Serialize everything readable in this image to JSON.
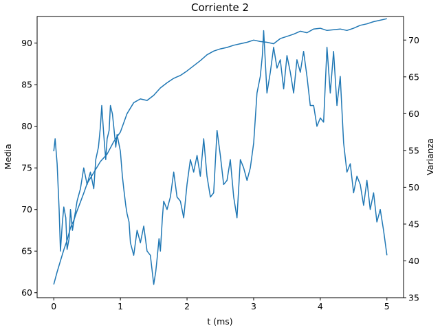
{
  "chart_data": {
    "type": "line",
    "title": "Corriente 2",
    "xlabel": "t (ms)",
    "ylabel_left": "Media",
    "ylabel_right": "Varianza",
    "xlim": [
      -0.25,
      5.25
    ],
    "ylim_left": [
      59.4,
      93.2
    ],
    "ylim_right": [
      35.0,
      73.2
    ],
    "xticks": [
      "0",
      "1",
      "2",
      "3",
      "4",
      "5"
    ],
    "yticks_left": [
      "60",
      "65",
      "70",
      "75",
      "80",
      "85",
      "90"
    ],
    "yticks_right": [
      "35",
      "40",
      "45",
      "50",
      "55",
      "60",
      "65",
      "70"
    ],
    "grid": false,
    "line_color": "#1f77b4",
    "series": [
      {
        "axis": "left",
        "x": [
          0.0,
          0.02,
          0.05,
          0.08,
          0.1,
          0.13,
          0.15,
          0.18,
          0.2,
          0.23,
          0.25,
          0.28,
          0.3,
          0.35,
          0.4,
          0.45,
          0.5,
          0.55,
          0.6,
          0.63,
          0.67,
          0.7,
          0.72,
          0.75,
          0.78,
          0.8,
          0.83,
          0.85,
          0.88,
          0.9,
          0.93,
          0.95,
          1.0,
          1.03,
          1.05,
          1.08,
          1.1,
          1.13,
          1.15,
          1.2,
          1.25,
          1.3,
          1.35,
          1.4,
          1.45,
          1.5,
          1.53,
          1.55,
          1.58,
          1.6,
          1.63,
          1.65,
          1.7,
          1.75,
          1.8,
          1.85,
          1.9,
          1.95,
          2.0,
          2.05,
          2.1,
          2.15,
          2.2,
          2.25,
          2.3,
          2.35,
          2.4,
          2.45,
          2.5,
          2.55,
          2.6,
          2.65,
          2.7,
          2.75,
          2.8,
          2.85,
          2.9,
          2.95,
          3.0,
          3.05,
          3.1,
          3.13,
          3.15,
          3.18,
          3.2,
          3.25,
          3.3,
          3.35,
          3.4,
          3.45,
          3.5,
          3.55,
          3.6,
          3.65,
          3.7,
          3.75,
          3.8,
          3.85,
          3.9,
          3.95,
          4.0,
          4.05,
          4.1,
          4.15,
          4.2,
          4.25,
          4.3,
          4.35,
          4.4,
          4.45,
          4.5,
          4.55,
          4.6,
          4.65,
          4.7,
          4.75,
          4.8,
          4.85,
          4.9,
          4.95,
          5.0
        ],
        "values": [
          77.0,
          78.5,
          75.5,
          70.0,
          65.0,
          68.5,
          70.3,
          69.0,
          65.2,
          66.5,
          70.0,
          67.5,
          68.5,
          71.0,
          72.5,
          75.0,
          73.0,
          74.5,
          72.5,
          76.0,
          77.5,
          80.0,
          82.5,
          79.0,
          76.0,
          78.5,
          79.5,
          82.5,
          81.5,
          80.0,
          77.5,
          79.0,
          77.0,
          74.0,
          72.5,
          70.5,
          69.5,
          68.5,
          66.0,
          64.5,
          67.5,
          66.0,
          68.0,
          65.0,
          64.5,
          61.0,
          62.5,
          64.0,
          66.5,
          65.0,
          69.0,
          71.0,
          70.0,
          71.5,
          74.5,
          71.5,
          71.0,
          69.0,
          73.0,
          76.0,
          74.5,
          76.5,
          74.0,
          78.5,
          74.0,
          71.5,
          72.0,
          79.5,
          76.5,
          73.0,
          73.5,
          76.0,
          71.5,
          69.0,
          76.0,
          75.0,
          73.5,
          75.0,
          78.0,
          84.0,
          86.0,
          88.5,
          91.5,
          87.0,
          84.0,
          86.5,
          89.5,
          87.0,
          88.0,
          84.5,
          88.5,
          86.5,
          84.0,
          88.0,
          86.5,
          89.0,
          86.0,
          82.5,
          82.5,
          80.0,
          81.0,
          80.5,
          89.5,
          84.0,
          89.0,
          82.5,
          86.0,
          78.0,
          74.5,
          75.5,
          72.0,
          74.0,
          73.0,
          70.5,
          73.5,
          70.0,
          72.0,
          68.5,
          70.0,
          67.5,
          64.5
        ]
      },
      {
        "axis": "right",
        "x": [
          0.0,
          0.05,
          0.1,
          0.15,
          0.2,
          0.25,
          0.3,
          0.35,
          0.4,
          0.45,
          0.5,
          0.6,
          0.7,
          0.8,
          0.9,
          1.0,
          1.1,
          1.2,
          1.3,
          1.4,
          1.5,
          1.6,
          1.7,
          1.8,
          1.9,
          2.0,
          2.1,
          2.2,
          2.3,
          2.4,
          2.5,
          2.6,
          2.7,
          2.8,
          2.9,
          3.0,
          3.1,
          3.2,
          3.3,
          3.4,
          3.5,
          3.6,
          3.7,
          3.8,
          3.9,
          4.0,
          4.1,
          4.2,
          4.3,
          4.4,
          4.5,
          4.6,
          4.7,
          4.8,
          4.9,
          5.0
        ],
        "values": [
          36.8,
          38.5,
          40.0,
          41.5,
          42.8,
          44.5,
          45.5,
          46.8,
          48.0,
          49.2,
          50.5,
          52.0,
          53.5,
          54.5,
          56.2,
          57.5,
          60.0,
          61.5,
          62.0,
          61.8,
          62.5,
          63.5,
          64.2,
          64.8,
          65.2,
          65.8,
          66.5,
          67.2,
          68.0,
          68.5,
          68.8,
          69.0,
          69.3,
          69.5,
          69.7,
          70.0,
          69.8,
          69.7,
          69.5,
          70.2,
          70.5,
          70.8,
          71.2,
          71.0,
          71.5,
          71.6,
          71.3,
          71.4,
          71.5,
          71.3,
          71.6,
          72.0,
          72.2,
          72.5,
          72.7,
          72.9
        ]
      }
    ]
  }
}
